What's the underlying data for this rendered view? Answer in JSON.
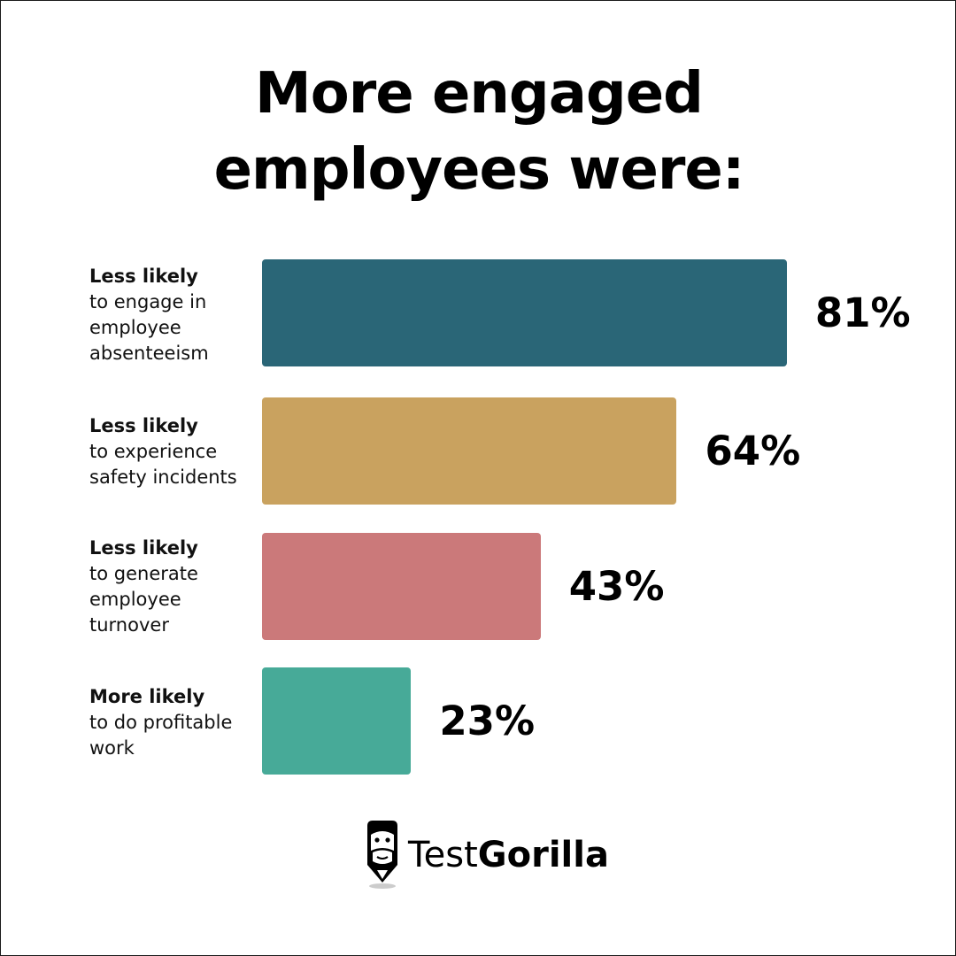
{
  "title_lines": [
    "More engaged",
    "employees were:"
  ],
  "chart_data": {
    "type": "bar",
    "orientation": "horizontal",
    "title": "More engaged employees were:",
    "categories": [
      {
        "lead": "Less likely",
        "rest": "to engage in\nemployee\nabsenteeism"
      },
      {
        "lead": "Less likely",
        "rest": "to experience\nsafety incidents"
      },
      {
        "lead": "Less likely",
        "rest": "to generate\nemployee\nturnover"
      },
      {
        "lead": "More likely",
        "rest": "to do profitable\nwork"
      }
    ],
    "values": [
      81,
      64,
      43,
      23
    ],
    "value_labels": [
      "81%",
      "64%",
      "43%",
      "23%"
    ],
    "colors": [
      "#2a6677",
      "#c9a25f",
      "#cb797a",
      "#47aa98"
    ],
    "xlim": [
      0,
      100
    ],
    "grid": false,
    "legend": "none"
  },
  "brand": {
    "name_light": "Test",
    "name_bold": "Gorilla",
    "icon": "gorilla-pencil-icon"
  }
}
